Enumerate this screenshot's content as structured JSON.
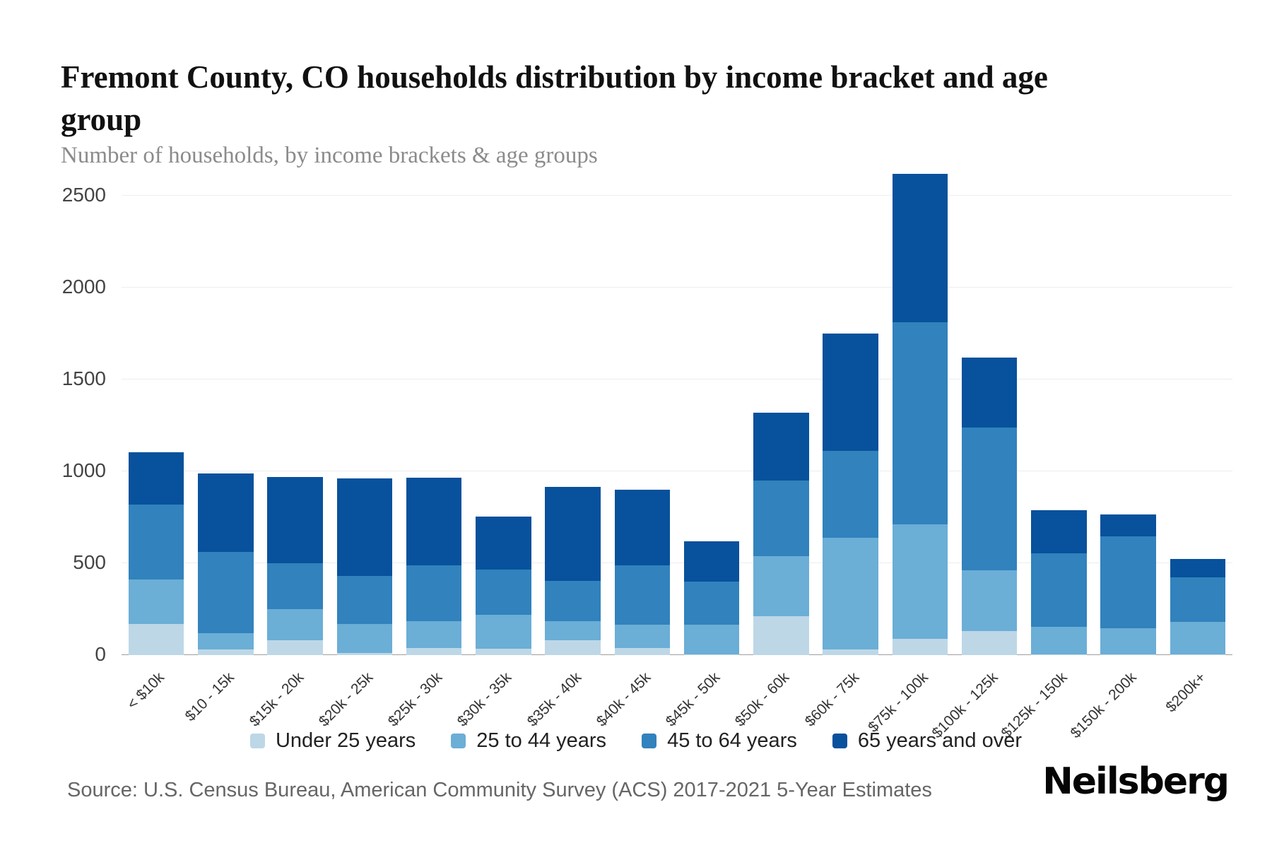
{
  "header": {
    "title": "Fremont County, CO households distribution by income bracket and age group",
    "subtitle": "Number of households, by income brackets & age groups"
  },
  "footer": {
    "source": "Source: U.S. Census Bureau, American Community Survey (ACS) 2017-2021 5-Year Estimates",
    "logo": "Neilsberg"
  },
  "chart_data": {
    "type": "bar",
    "stacked": true,
    "title": "Fremont County, CO households distribution by income bracket and age group",
    "xlabel": "",
    "ylabel": "Number of households",
    "ylim": [
      0,
      2500
    ],
    "yticks": [
      0,
      500,
      1000,
      1500,
      2000,
      2500
    ],
    "grid": true,
    "legend_position": "bottom",
    "categories": [
      "< $10k",
      "$10 - 15k",
      "$15k - 20k",
      "$20k - 25k",
      "$25k - 30k",
      "$30k - 35k",
      "$35k - 40k",
      "$40k - 45k",
      "$45k - 50k",
      "$50k - 60k",
      "$60k - 75k",
      "$75k - 100k",
      "$100k - 125k",
      "$125k - 150k",
      "$150k - 200k",
      "$200k+"
    ],
    "series": [
      {
        "name": "Under 25 years",
        "color": "#bdd7e7",
        "values": [
          170,
          30,
          80,
          10,
          40,
          35,
          80,
          40,
          5,
          210,
          30,
          90,
          130,
          5,
          5,
          5
        ]
      },
      {
        "name": "25 to 44 years",
        "color": "#6baed6",
        "values": [
          240,
          90,
          170,
          160,
          145,
          185,
          105,
          125,
          160,
          330,
          610,
          620,
          330,
          150,
          140,
          175
        ]
      },
      {
        "name": "45 to 64 years",
        "color": "#3182bd",
        "values": [
          410,
          440,
          250,
          260,
          305,
          245,
          220,
          325,
          235,
          410,
          470,
          1100,
          780,
          400,
          500,
          245
        ]
      },
      {
        "name": "65 years and over",
        "color": "#08519c",
        "values": [
          285,
          430,
          470,
          530,
          475,
          290,
          510,
          410,
          220,
          370,
          640,
          810,
          380,
          235,
          120,
          100
        ]
      }
    ]
  }
}
